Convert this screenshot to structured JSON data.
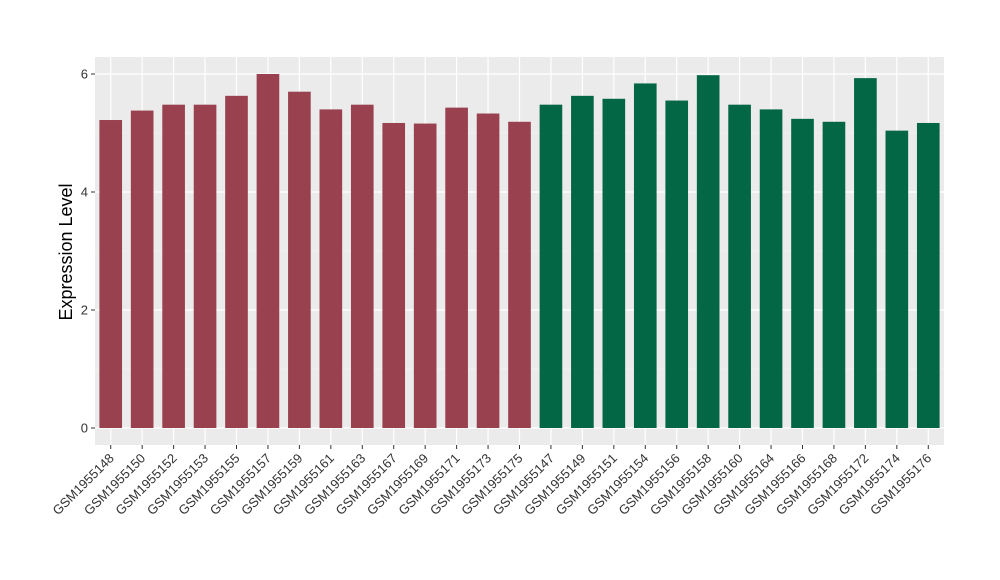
{
  "chart_data": {
    "type": "bar",
    "title": "",
    "xlabel": "",
    "ylabel": "Expression Level",
    "ylim": [
      0,
      6.25
    ],
    "yticks": [
      0,
      2,
      4,
      6
    ],
    "grid": true,
    "background": "#EBEBEB",
    "categories": [
      "GSM1955148",
      "GSM1955150",
      "GSM1955152",
      "GSM1955153",
      "GSM1955155",
      "GSM1955157",
      "GSM1955159",
      "GSM1955161",
      "GSM1955163",
      "GSM1955167",
      "GSM1955169",
      "GSM1955171",
      "GSM1955173",
      "GSM1955175",
      "GSM1955147",
      "GSM1955149",
      "GSM1955151",
      "GSM1955154",
      "GSM1955156",
      "GSM1955158",
      "GSM1955160",
      "GSM1955164",
      "GSM1955166",
      "GSM1955168",
      "GSM1955172",
      "GSM1955174",
      "GSM1955176"
    ],
    "values": [
      5.22,
      5.38,
      5.48,
      5.48,
      5.63,
      6.0,
      5.7,
      5.4,
      5.48,
      5.17,
      5.16,
      5.43,
      5.33,
      5.19,
      5.48,
      5.63,
      5.58,
      5.84,
      5.55,
      5.98,
      5.48,
      5.4,
      5.24,
      5.19,
      5.93,
      5.04,
      5.17
    ],
    "colors": [
      "#99414F",
      "#99414F",
      "#99414F",
      "#99414F",
      "#99414F",
      "#99414F",
      "#99414F",
      "#99414F",
      "#99414F",
      "#99414F",
      "#99414F",
      "#99414F",
      "#99414F",
      "#99414F",
      "#036645",
      "#036645",
      "#036645",
      "#036645",
      "#036645",
      "#036645",
      "#036645",
      "#036645",
      "#036645",
      "#036645",
      "#036645",
      "#036645",
      "#036645"
    ]
  }
}
